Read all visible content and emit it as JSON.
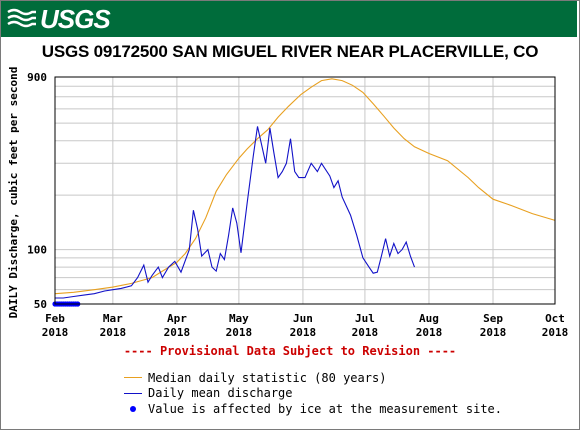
{
  "header": {
    "logo_text": "USGS"
  },
  "chart_data": {
    "type": "line",
    "title": "USGS 09172500 SAN MIGUEL RIVER NEAR PLACERVILLE, CO",
    "ylabel": "DAILY Discharge, cubic feet per second",
    "xlabel": "",
    "yscale": "log",
    "ylim": [
      50,
      900
    ],
    "y_tick_labels": [
      "50",
      "100",
      "900"
    ],
    "x_tick_labels": [
      {
        "month": "Feb",
        "year": "2018",
        "date": "2018-02-01"
      },
      {
        "month": "Mar",
        "year": "2018",
        "date": "2018-03-01"
      },
      {
        "month": "Apr",
        "year": "2018",
        "date": "2018-04-01"
      },
      {
        "month": "May",
        "year": "2018",
        "date": "2018-05-01"
      },
      {
        "month": "Jun",
        "year": "2018",
        "date": "2018-06-01"
      },
      {
        "month": "Jul",
        "year": "2018",
        "date": "2018-07-01"
      },
      {
        "month": "Aug",
        "year": "2018",
        "date": "2018-08-01"
      },
      {
        "month": "Sep",
        "year": "2018",
        "date": "2018-09-01"
      },
      {
        "month": "Oct",
        "year": "2018",
        "date": "2018-10-01"
      }
    ],
    "xlim": [
      "2018-02-01",
      "2018-10-01"
    ],
    "grid": true,
    "series": [
      {
        "name": "Median daily statistic (80 years)",
        "color": "#e8a020",
        "points": [
          [
            "2018-02-01",
            57
          ],
          [
            "2018-02-10",
            58
          ],
          [
            "2018-02-20",
            60
          ],
          [
            "2018-03-01",
            62
          ],
          [
            "2018-03-10",
            65
          ],
          [
            "2018-03-20",
            70
          ],
          [
            "2018-03-25",
            76
          ],
          [
            "2018-04-01",
            85
          ],
          [
            "2018-04-05",
            95
          ],
          [
            "2018-04-10",
            115
          ],
          [
            "2018-04-15",
            150
          ],
          [
            "2018-04-20",
            210
          ],
          [
            "2018-04-25",
            260
          ],
          [
            "2018-05-01",
            320
          ],
          [
            "2018-05-05",
            360
          ],
          [
            "2018-05-10",
            410
          ],
          [
            "2018-05-15",
            460
          ],
          [
            "2018-05-20",
            540
          ],
          [
            "2018-05-25",
            620
          ],
          [
            "2018-05-31",
            720
          ],
          [
            "2018-06-05",
            790
          ],
          [
            "2018-06-10",
            860
          ],
          [
            "2018-06-15",
            880
          ],
          [
            "2018-06-20",
            860
          ],
          [
            "2018-06-25",
            810
          ],
          [
            "2018-06-30",
            740
          ],
          [
            "2018-07-05",
            640
          ],
          [
            "2018-07-10",
            550
          ],
          [
            "2018-07-15",
            470
          ],
          [
            "2018-07-20",
            410
          ],
          [
            "2018-07-25",
            370
          ],
          [
            "2018-08-01",
            340
          ],
          [
            "2018-08-10",
            310
          ],
          [
            "2018-08-20",
            250
          ],
          [
            "2018-08-25",
            220
          ],
          [
            "2018-09-01",
            190
          ],
          [
            "2018-09-10",
            175
          ],
          [
            "2018-09-20",
            158
          ],
          [
            "2018-10-01",
            145
          ]
        ]
      },
      {
        "name": "Daily mean discharge",
        "color": "#1212c8",
        "points": [
          [
            "2018-02-01",
            54
          ],
          [
            "2018-02-05",
            54
          ],
          [
            "2018-02-10",
            55
          ],
          [
            "2018-02-15",
            56
          ],
          [
            "2018-02-20",
            57
          ],
          [
            "2018-02-25",
            59
          ],
          [
            "2018-03-01",
            60
          ],
          [
            "2018-03-05",
            61
          ],
          [
            "2018-03-10",
            63
          ],
          [
            "2018-03-13",
            70
          ],
          [
            "2018-03-16",
            82
          ],
          [
            "2018-03-18",
            66
          ],
          [
            "2018-03-20",
            72
          ],
          [
            "2018-03-23",
            80
          ],
          [
            "2018-03-25",
            70
          ],
          [
            "2018-03-28",
            80
          ],
          [
            "2018-03-31",
            86
          ],
          [
            "2018-04-03",
            75
          ],
          [
            "2018-04-07",
            100
          ],
          [
            "2018-04-09",
            165
          ],
          [
            "2018-04-11",
            130
          ],
          [
            "2018-04-13",
            92
          ],
          [
            "2018-04-16",
            100
          ],
          [
            "2018-04-18",
            80
          ],
          [
            "2018-04-20",
            76
          ],
          [
            "2018-04-22",
            95
          ],
          [
            "2018-04-24",
            88
          ],
          [
            "2018-04-26",
            120
          ],
          [
            "2018-04-28",
            170
          ],
          [
            "2018-04-30",
            140
          ],
          [
            "2018-05-02",
            96
          ],
          [
            "2018-05-05",
            180
          ],
          [
            "2018-05-08",
            330
          ],
          [
            "2018-05-10",
            480
          ],
          [
            "2018-05-12",
            380
          ],
          [
            "2018-05-14",
            300
          ],
          [
            "2018-05-16",
            470
          ],
          [
            "2018-05-18",
            340
          ],
          [
            "2018-05-20",
            250
          ],
          [
            "2018-05-22",
            270
          ],
          [
            "2018-05-24",
            300
          ],
          [
            "2018-05-26",
            410
          ],
          [
            "2018-05-28",
            270
          ],
          [
            "2018-05-30",
            250
          ],
          [
            "2018-06-02",
            250
          ],
          [
            "2018-06-05",
            300
          ],
          [
            "2018-06-08",
            270
          ],
          [
            "2018-06-10",
            300
          ],
          [
            "2018-06-14",
            255
          ],
          [
            "2018-06-16",
            220
          ],
          [
            "2018-06-18",
            240
          ],
          [
            "2018-06-20",
            195
          ],
          [
            "2018-06-24",
            155
          ],
          [
            "2018-06-27",
            120
          ],
          [
            "2018-06-30",
            90
          ],
          [
            "2018-07-03",
            80
          ],
          [
            "2018-07-05",
            74
          ],
          [
            "2018-07-07",
            75
          ],
          [
            "2018-07-09",
            92
          ],
          [
            "2018-07-11",
            115
          ],
          [
            "2018-07-13",
            92
          ],
          [
            "2018-07-15",
            108
          ],
          [
            "2018-07-17",
            95
          ],
          [
            "2018-07-19",
            100
          ],
          [
            "2018-07-21",
            110
          ],
          [
            "2018-07-23",
            92
          ],
          [
            "2018-07-25",
            80
          ]
        ]
      }
    ],
    "ice_points": [
      "2018-02-01",
      "2018-02-02",
      "2018-02-03",
      "2018-02-04",
      "2018-02-05",
      "2018-02-06",
      "2018-02-07",
      "2018-02-08",
      "2018-02-09",
      "2018-02-10",
      "2018-02-11",
      "2018-02-12"
    ],
    "ice_value": 50,
    "legend": {
      "placement": "bottom",
      "items": [
        {
          "label": "Median daily statistic (80 years)",
          "kind": "line",
          "color": "#e8a020"
        },
        {
          "label": "Daily mean discharge",
          "kind": "line",
          "color": "#1212c8"
        },
        {
          "label": "Value is affected by ice at the measurement site.",
          "kind": "dot",
          "color": "#0000ff"
        }
      ]
    },
    "note": "---- Provisional Data Subject to Revision ----"
  }
}
